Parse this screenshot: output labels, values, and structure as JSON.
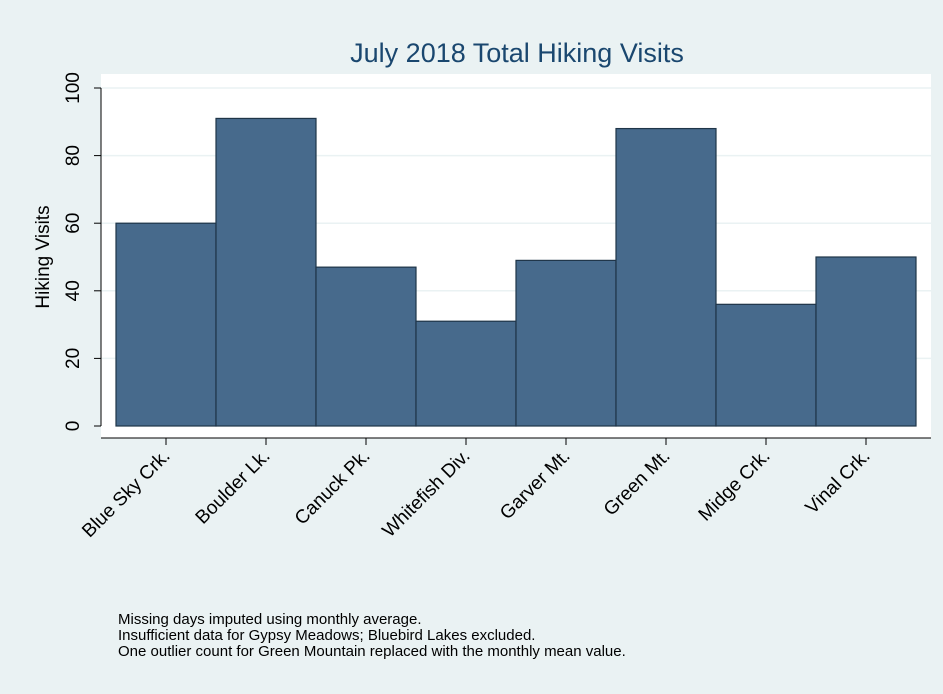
{
  "chart_data": {
    "type": "bar",
    "title": "July 2018 Total Hiking Visits",
    "xlabel": "",
    "ylabel": "Hiking Visits",
    "categories": [
      "Blue Sky Crk.",
      "Boulder Lk.",
      "Canuck Pk.",
      "Whitefish Div.",
      "Garver Mt.",
      "Green Mt.",
      "Midge Crk.",
      "Vinal Crk."
    ],
    "values": [
      60,
      91,
      47,
      31,
      49,
      88,
      36,
      50
    ],
    "ylim": [
      0,
      100
    ],
    "yticks": [
      0,
      20,
      40,
      60,
      80,
      100
    ],
    "grid": true,
    "legend": "none"
  },
  "notes": [
    "Missing days imputed using monthly average.",
    "Insufficient data for Gypsy Meadows; Bluebird Lakes excluded.",
    "One outlier count for Green Mountain replaced with the monthly mean value."
  ],
  "colors": {
    "background": "#eaf2f3",
    "plot_area": "#ffffff",
    "bar_fill": "#476a8c",
    "bar_stroke": "#1f3548",
    "title": "#1a476f",
    "grid": "#eaf2f3"
  }
}
